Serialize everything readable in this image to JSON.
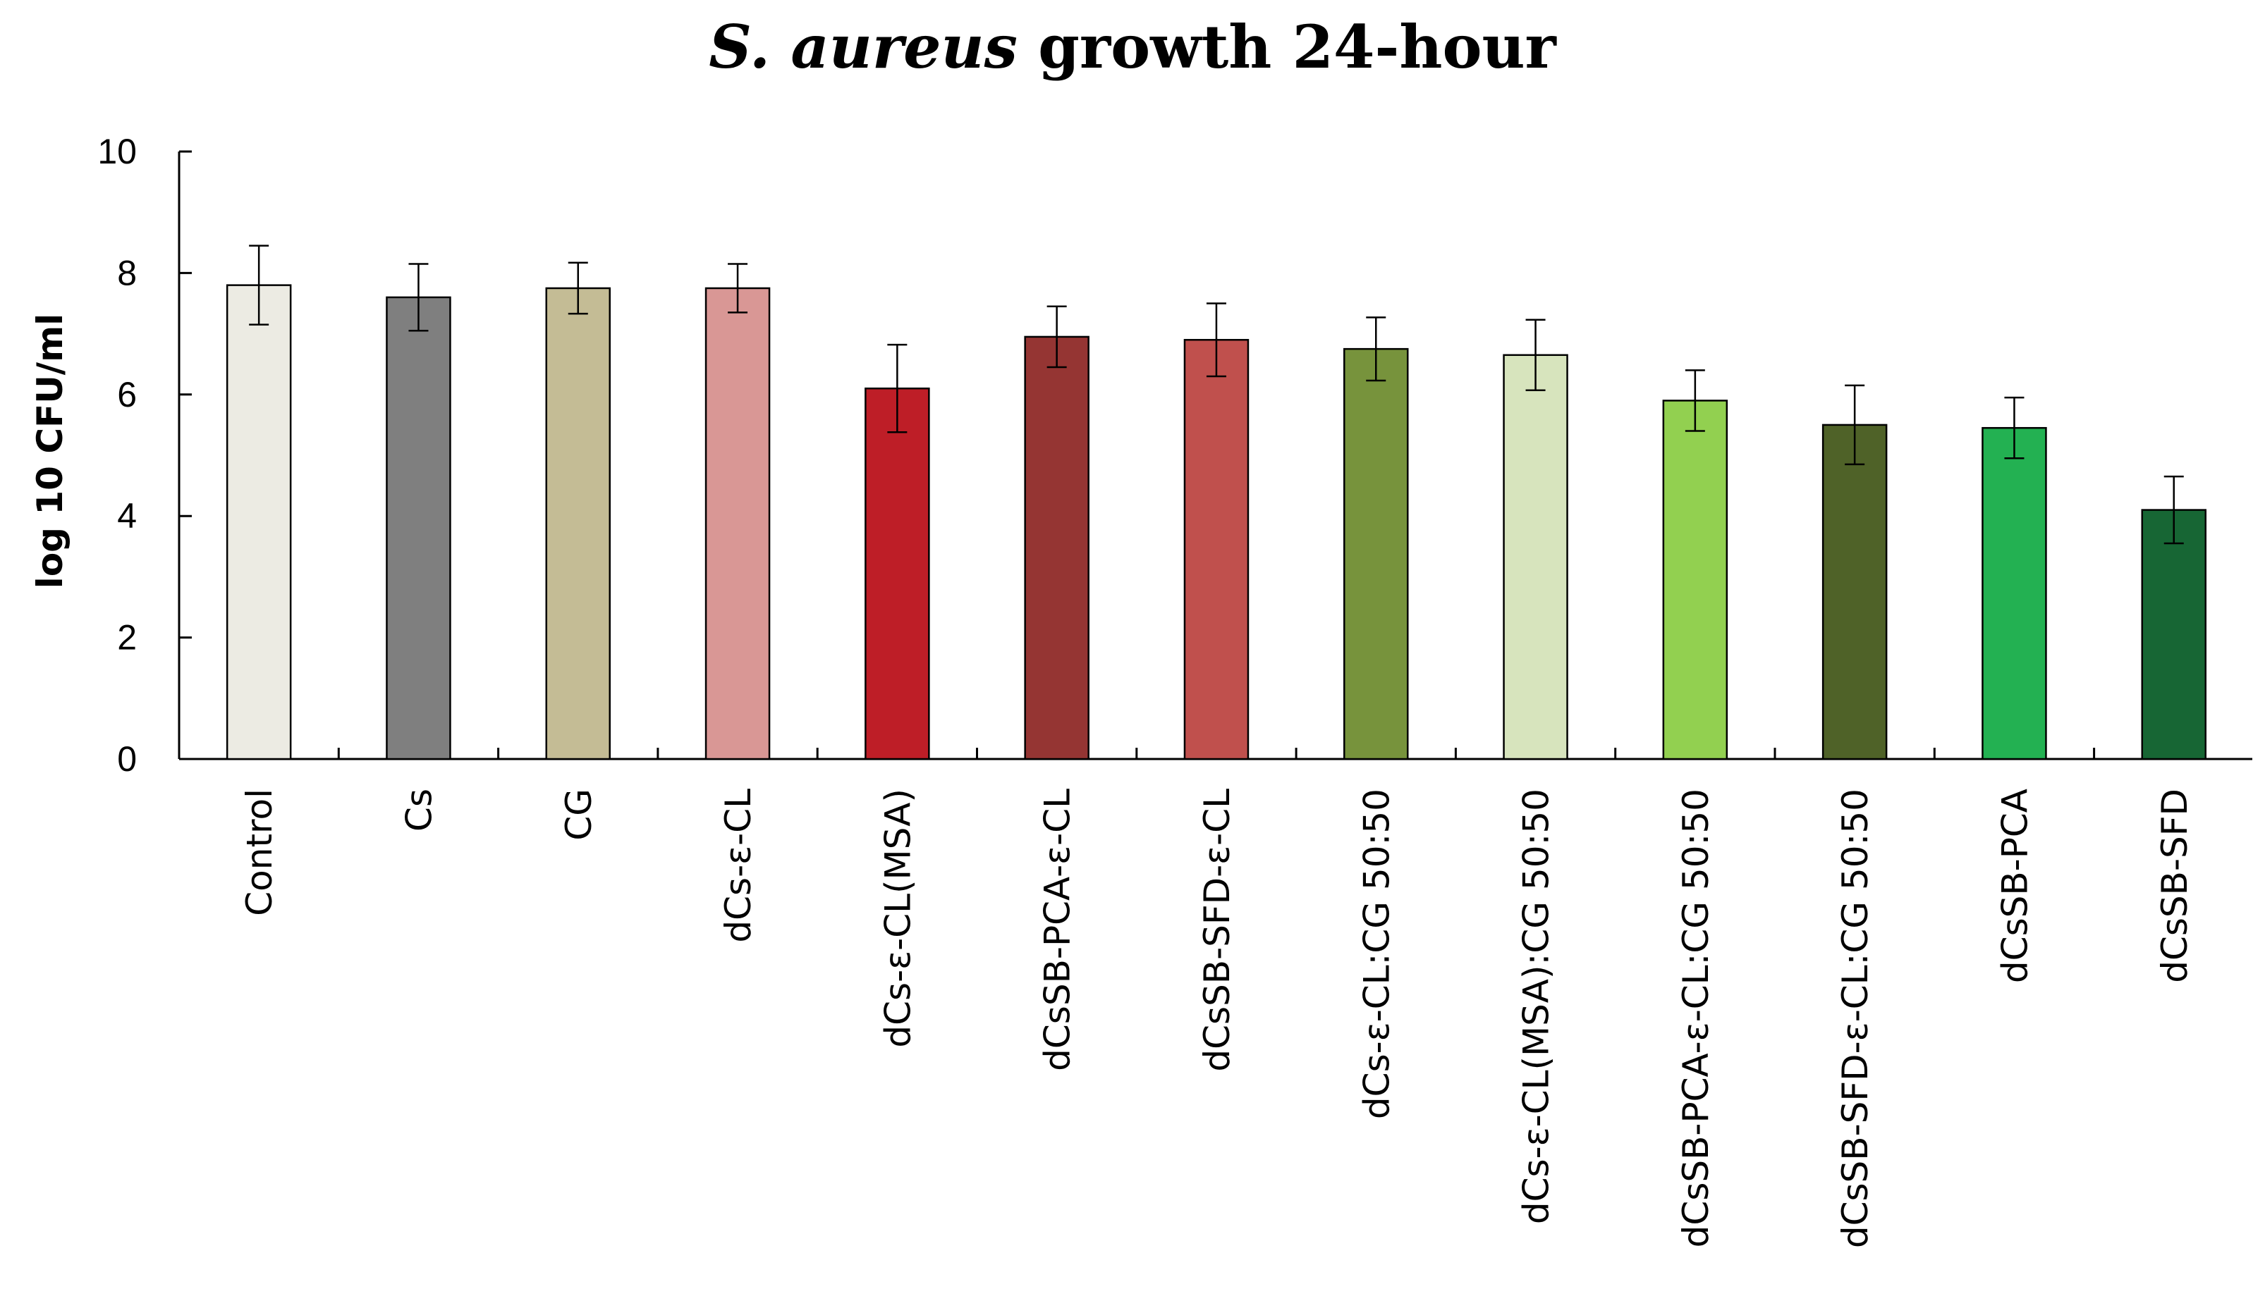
{
  "chart_data": {
    "type": "bar",
    "title_italic": "S. aureus",
    "title_rest": "growth 24-hour",
    "xlabel": "",
    "ylabel": "log 10 CFU/ml",
    "ylim": [
      0,
      10
    ],
    "yticks": [
      0,
      2,
      4,
      6,
      8,
      10
    ],
    "grid": false,
    "legend": "none",
    "error_bars": true,
    "categories": [
      "Control",
      "Cs",
      "CG",
      "dCs-ε-CL",
      "dCs-ε-CL(MSA)",
      "dCsSB-PCA-ε-CL",
      "dCsSB-SFD-ε-CL",
      "dCs-ε-CL:CG 50:50",
      "dCs-ε-CL(MSA):CG 50:50",
      "dCsSB-PCA-ε-CL:CG 50:50",
      "dCsSB-SFD-ε-CL:CG 50:50",
      "dCsSB-PCA",
      "dCsSB-SFD"
    ],
    "values": [
      7.8,
      7.6,
      7.75,
      7.75,
      6.1,
      6.95,
      6.9,
      6.75,
      6.65,
      5.9,
      5.5,
      5.45,
      4.1
    ],
    "errors": [
      0.65,
      0.55,
      0.42,
      0.4,
      0.72,
      0.5,
      0.6,
      0.52,
      0.58,
      0.5,
      0.65,
      0.5,
      0.55
    ],
    "colors": [
      "#ecebe3",
      "#7f7f7f",
      "#c4bc95",
      "#d99795",
      "#be1e27",
      "#953533",
      "#c0504d",
      "#77933c",
      "#d7e4bd",
      "#92d050",
      "#4f6228",
      "#23b152",
      "#176634"
    ]
  }
}
